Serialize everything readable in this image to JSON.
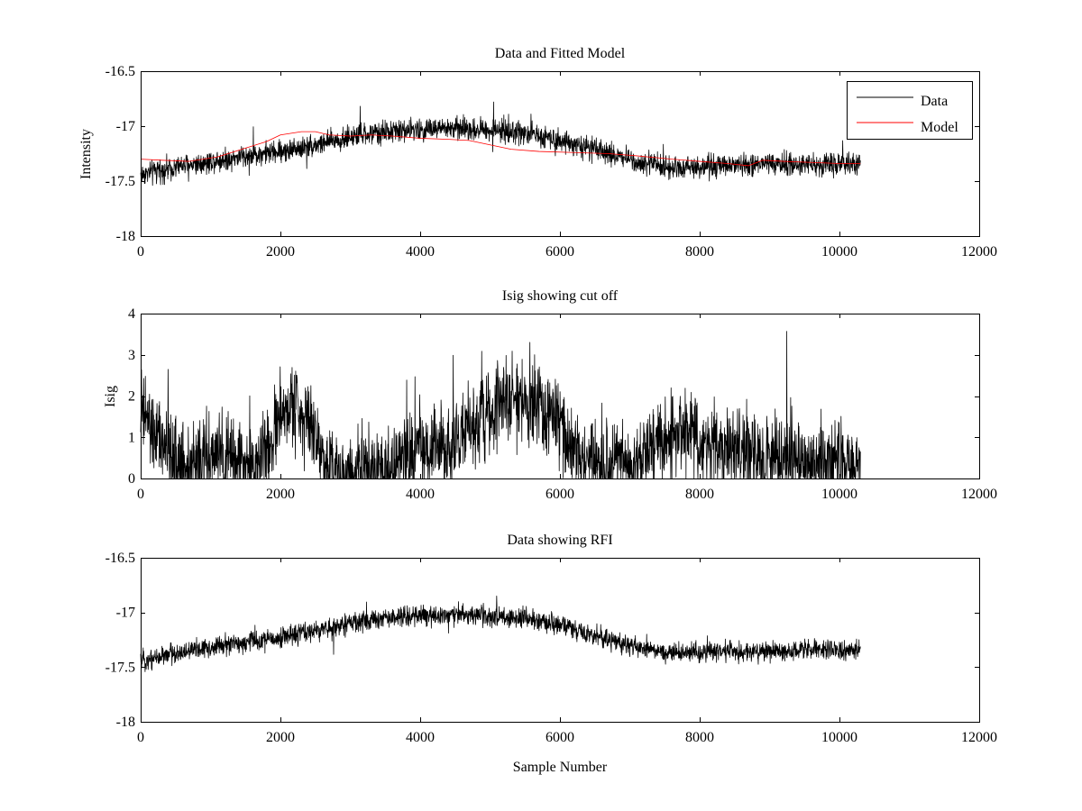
{
  "figure": {
    "background": "#ffffff",
    "foreground": "#000000"
  },
  "chart_data": [
    {
      "type": "line",
      "title": "Data and Fitted Model",
      "xlabel": "",
      "ylabel": "Intensity",
      "xlim": [
        0,
        12000
      ],
      "ylim": [
        -18,
        -16.5
      ],
      "xticks": [
        0,
        2000,
        4000,
        6000,
        8000,
        10000,
        12000
      ],
      "xtick_labels": [
        "0",
        "2000",
        "4000",
        "6000",
        "8000",
        "10000",
        "12000"
      ],
      "yticks": [
        -18,
        -17.5,
        -17,
        -16.5
      ],
      "ytick_labels": [
        "-18",
        "-17.5",
        "-17",
        "-16.5"
      ],
      "legend": {
        "position": "top-right",
        "entries": [
          "Data",
          "Model"
        ]
      },
      "series": [
        {
          "name": "Data",
          "color": "#000000",
          "x_range": [
            0,
            10300
          ],
          "noise": 0.05,
          "baseline": {
            "x": [
              0,
              500,
              1000,
              1500,
              2000,
              2500,
              3000,
              3500,
              4000,
              4500,
              5000,
              5500,
              6000,
              6500,
              7000,
              7500,
              8000,
              8500,
              9000,
              9500,
              10000,
              10300
            ],
            "y": [
              -17.44,
              -17.37,
              -17.32,
              -17.27,
              -17.23,
              -17.17,
              -17.1,
              -17.05,
              -17.03,
              -17.02,
              -17.03,
              -17.06,
              -17.12,
              -17.22,
              -17.3,
              -17.37,
              -17.37,
              -17.36,
              -17.35,
              -17.35,
              -17.34,
              -17.34
            ]
          }
        },
        {
          "name": "Model",
          "color": "#ff0000",
          "x": [
            0,
            300,
            700,
            1100,
            1500,
            1800,
            2000,
            2300,
            2500,
            2700,
            3000,
            3300,
            3600,
            4000,
            4400,
            4700,
            5000,
            5300,
            5700,
            6200,
            6700,
            7100,
            7600,
            8000,
            8400,
            8700,
            8900,
            9200,
            9600,
            10000,
            10300
          ],
          "y": [
            -17.3,
            -17.31,
            -17.32,
            -17.28,
            -17.2,
            -17.14,
            -17.08,
            -17.05,
            -17.05,
            -17.08,
            -17.09,
            -17.08,
            -17.09,
            -17.11,
            -17.12,
            -17.13,
            -17.17,
            -17.21,
            -17.23,
            -17.24,
            -17.25,
            -17.27,
            -17.3,
            -17.32,
            -17.34,
            -17.36,
            -17.31,
            -17.32,
            -17.33,
            -17.34,
            -17.34
          ]
        }
      ]
    },
    {
      "type": "line",
      "title": "Isig showing cut off",
      "xlabel": "",
      "ylabel": "Isig",
      "xlim": [
        0,
        12000
      ],
      "ylim": [
        0,
        4
      ],
      "xticks": [
        0,
        2000,
        4000,
        6000,
        8000,
        10000,
        12000
      ],
      "xtick_labels": [
        "0",
        "2000",
        "4000",
        "6000",
        "8000",
        "10000",
        "12000"
      ],
      "yticks": [
        0,
        1,
        2,
        3,
        4
      ],
      "ytick_labels": [
        "0",
        "1",
        "2",
        "3",
        "4"
      ],
      "series": [
        {
          "name": "Isig",
          "color": "#000000",
          "x_range": [
            0,
            10300
          ],
          "noise": 0.5,
          "clip_min": 0,
          "baseline": {
            "x": [
              0,
              200,
              400,
              700,
              1000,
              1300,
              1600,
              1850,
              2000,
              2200,
              2400,
              2600,
              2800,
              3100,
              3500,
              4000,
              4500,
              5000,
              5300,
              5600,
              5900,
              6100,
              6300,
              6600,
              7000,
              7300,
              7600,
              7800,
              8000,
              8500,
              9000,
              9500,
              10000,
              10300
            ],
            "y": [
              1.7,
              1.0,
              0.6,
              0.3,
              0.5,
              0.5,
              0.3,
              0.7,
              1.5,
              1.8,
              1.5,
              0.5,
              0.2,
              0.2,
              0.3,
              0.6,
              0.9,
              1.6,
              1.9,
              1.8,
              1.5,
              1.0,
              0.5,
              0.2,
              0.4,
              0.7,
              1.0,
              1.1,
              0.9,
              0.6,
              0.5,
              0.45,
              0.4,
              0.35
            ]
          }
        }
      ]
    },
    {
      "type": "line",
      "title": "Data showing RFI",
      "xlabel": "Sample Number",
      "ylabel": "",
      "xlim": [
        0,
        12000
      ],
      "ylim": [
        -18,
        -16.5
      ],
      "xticks": [
        0,
        2000,
        4000,
        6000,
        8000,
        10000,
        12000
      ],
      "xtick_labels": [
        "0",
        "2000",
        "4000",
        "6000",
        "8000",
        "10000",
        "12000"
      ],
      "yticks": [
        -18,
        -17.5,
        -17,
        -16.5
      ],
      "ytick_labels": [
        "-18",
        "-17.5",
        "-17",
        "-16.5"
      ],
      "series": [
        {
          "name": "Data",
          "color": "#000000",
          "x_range": [
            0,
            10300
          ],
          "noise": 0.045,
          "baseline": {
            "x": [
              0,
              500,
              1000,
              1500,
              2000,
              2500,
              3000,
              3500,
              4000,
              4500,
              5000,
              5500,
              6000,
              6500,
              7000,
              7500,
              8000,
              8500,
              9000,
              9500,
              10000,
              10300
            ],
            "y": [
              -17.44,
              -17.37,
              -17.32,
              -17.27,
              -17.23,
              -17.17,
              -17.1,
              -17.05,
              -17.03,
              -17.02,
              -17.03,
              -17.06,
              -17.12,
              -17.22,
              -17.3,
              -17.37,
              -17.37,
              -17.36,
              -17.35,
              -17.35,
              -17.34,
              -17.34
            ]
          }
        }
      ]
    }
  ]
}
